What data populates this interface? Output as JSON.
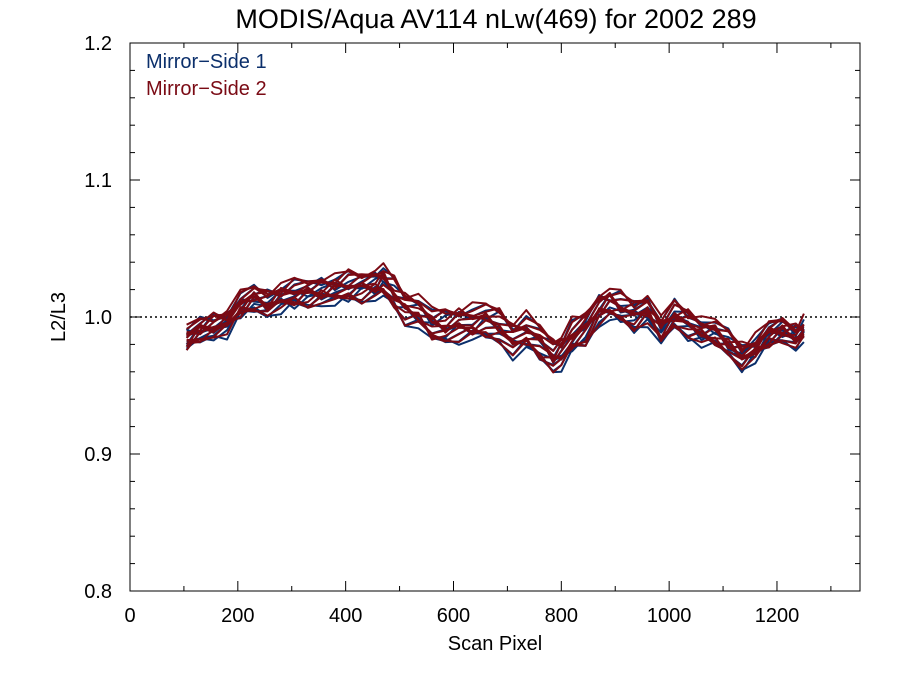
{
  "chart_data": {
    "type": "line",
    "title": "MODIS/Aqua AV114 nLw(469) for 2002 289",
    "xlabel": "Scan Pixel",
    "ylabel": "L2/L3",
    "xlim": [
      0,
      1354
    ],
    "ylim": [
      0.8,
      1.2
    ],
    "xticks": [
      0,
      200,
      400,
      600,
      800,
      1000,
      1200
    ],
    "xtick_labels": [
      "0",
      "200",
      "400",
      "600",
      "800",
      "1000",
      "1200"
    ],
    "yticks": [
      0.8,
      0.9,
      1.0,
      1.1,
      1.2
    ],
    "ytick_labels": [
      "0.8",
      "0.9",
      "1.0",
      "1.1",
      "1.2"
    ],
    "reference_line": 1.0,
    "grid": false,
    "legend_position": "top-left",
    "legend": [
      {
        "label": "Mirror−Side 1",
        "color": "#0b2f6b"
      },
      {
        "label": "Mirror−Side 2",
        "color": "#7a0a14"
      }
    ],
    "x": [
      105,
      130,
      155,
      180,
      205,
      230,
      255,
      280,
      305,
      330,
      355,
      380,
      405,
      430,
      455,
      470,
      490,
      510,
      535,
      560,
      585,
      610,
      635,
      660,
      685,
      710,
      735,
      760,
      785,
      800,
      820,
      845,
      870,
      890,
      910,
      935,
      960,
      985,
      1010,
      1035,
      1060,
      1085,
      1110,
      1135,
      1160,
      1185,
      1210,
      1235,
      1250
    ],
    "base_values": [
      0.984,
      0.99,
      0.993,
      0.997,
      1.008,
      1.014,
      1.01,
      1.015,
      1.016,
      1.018,
      1.019,
      1.02,
      1.021,
      1.023,
      1.024,
      1.026,
      1.016,
      1.008,
      1.004,
      0.994,
      0.992,
      0.996,
      0.995,
      0.997,
      0.993,
      0.985,
      0.988,
      0.982,
      0.972,
      0.975,
      0.984,
      0.992,
      1.006,
      1.01,
      1.005,
      1.002,
      1.006,
      0.99,
      1.0,
      0.996,
      0.99,
      0.988,
      0.98,
      0.972,
      0.977,
      0.987,
      0.99,
      0.986,
      0.99
    ],
    "series": [
      {
        "name": "Mirror−Side 1",
        "offsets": [
          -0.012,
          -0.008,
          -0.004,
          0.0,
          0.004,
          0.008,
          -0.01,
          -0.006,
          -0.002,
          0.002,
          0.006,
          0.01
        ]
      },
      {
        "name": "Mirror−Side 2",
        "offsets": [
          -0.01,
          -0.006,
          -0.002,
          0.002,
          0.006,
          0.01,
          -0.008,
          -0.004,
          0.0,
          0.004,
          0.008,
          0.012
        ]
      }
    ]
  }
}
